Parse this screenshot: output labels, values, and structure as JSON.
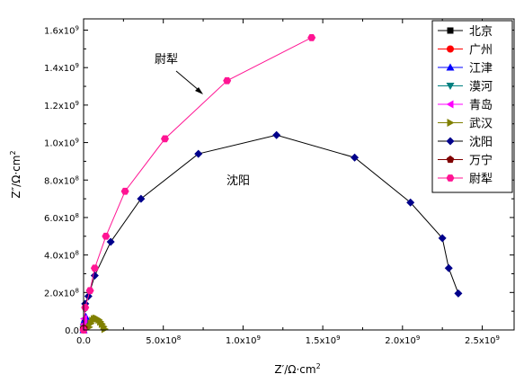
{
  "chart_data": {
    "type": "scatter",
    "xlabel": "Z′/Ω·cm",
    "xlabel_sup": "2",
    "ylabel": "Z″/Ω·cm",
    "ylabel_sup": "2",
    "xlim": [
      0,
      2700000000
    ],
    "ylim": [
      0,
      1660000000
    ],
    "xticks": [
      {
        "value": 0,
        "label": "0.0",
        "sup": ""
      },
      {
        "value": 500000000,
        "label": "5.0x10",
        "sup": "8"
      },
      {
        "value": 1000000000,
        "label": "1.0x10",
        "sup": "9"
      },
      {
        "value": 1500000000,
        "label": "1.5x10",
        "sup": "9"
      },
      {
        "value": 2000000000,
        "label": "2.0x10",
        "sup": "9"
      },
      {
        "value": 2500000000,
        "label": "2.5x10",
        "sup": "9"
      }
    ],
    "yticks": [
      {
        "value": 0,
        "label": "0.0",
        "sup": ""
      },
      {
        "value": 200000000,
        "label": "2.0x10",
        "sup": "8"
      },
      {
        "value": 400000000,
        "label": "4.0x10",
        "sup": "8"
      },
      {
        "value": 600000000,
        "label": "6.0x10",
        "sup": "8"
      },
      {
        "value": 800000000,
        "label": "8.0x10",
        "sup": "8"
      },
      {
        "value": 1000000000,
        "label": "1.0x10",
        "sup": "9"
      },
      {
        "value": 1200000000,
        "label": "1.2x10",
        "sup": "9"
      },
      {
        "value": 1400000000,
        "label": "1.4x10",
        "sup": "9"
      },
      {
        "value": 1600000000,
        "label": "1.6x10",
        "sup": "9"
      }
    ],
    "legend_position": "top-right",
    "series": [
      {
        "name": "北京",
        "color": "#000000",
        "marker": "square",
        "x": [
          0,
          2000000,
          4000000,
          6000000,
          8000000
        ],
        "y": [
          0,
          15000000,
          25000000,
          32000000,
          36000000
        ]
      },
      {
        "name": "广州",
        "color": "#ff0000",
        "marker": "circle",
        "x": [
          0,
          1500000,
          3000000,
          5000000
        ],
        "y": [
          0,
          10000000,
          18000000,
          24000000
        ]
      },
      {
        "name": "江津",
        "color": "#0000ff",
        "marker": "triangle-up",
        "x": [
          0,
          3000000,
          8000000,
          14000000
        ],
        "y": [
          0,
          30000000,
          55000000,
          70000000
        ]
      },
      {
        "name": "漠河",
        "color": "#008080",
        "marker": "triangle-down",
        "x": [
          0,
          2000000,
          5000000
        ],
        "y": [
          0,
          12000000,
          20000000
        ]
      },
      {
        "name": "青岛",
        "color": "#ff00ff",
        "marker": "triangle-left",
        "x": [
          0,
          1000000,
          3000000
        ],
        "y": [
          0,
          30000000,
          60000000
        ]
      },
      {
        "name": "武汉",
        "color": "#808000",
        "marker": "triangle-right",
        "x": [
          35000000,
          45000000,
          55000000,
          65000000,
          75000000,
          85000000,
          95000000,
          105000000,
          115000000,
          125000000,
          132000000
        ],
        "y": [
          15000000,
          35000000,
          50000000,
          58000000,
          62000000,
          60000000,
          54000000,
          44000000,
          32000000,
          18000000,
          5000000
        ]
      },
      {
        "name": "沈阳",
        "color": "#00008b",
        "marker": "diamond",
        "line": "#000000",
        "x": [
          10000000,
          30000000,
          70000000,
          170000000,
          360000000,
          720000000,
          1210000000,
          1700000000,
          2050000000,
          2250000000,
          2290000000,
          2350000000
        ],
        "y": [
          140000000,
          180000000,
          290000000,
          470000000,
          700000000,
          940000000,
          1040000000,
          920000000,
          680000000,
          490000000,
          330000000,
          195000000
        ]
      },
      {
        "name": "万宁",
        "color": "#800000",
        "marker": "pentagon",
        "x": [
          0,
          1000000,
          2000000
        ],
        "y": [
          0,
          5000000,
          10000000
        ]
      },
      {
        "name": "尉犁",
        "color": "#ff1493",
        "marker": "hexagon",
        "line": "#ff1493",
        "x": [
          0,
          10000000,
          40000000,
          70000000,
          140000000,
          260000000,
          510000000,
          900000000,
          1430000000
        ],
        "y": [
          0,
          120000000,
          210000000,
          330000000,
          500000000,
          740000000,
          1020000000,
          1330000000,
          1560000000
        ]
      }
    ],
    "annotations": [
      {
        "text": "尉犁"
      },
      {
        "text": "沈阳"
      }
    ]
  }
}
